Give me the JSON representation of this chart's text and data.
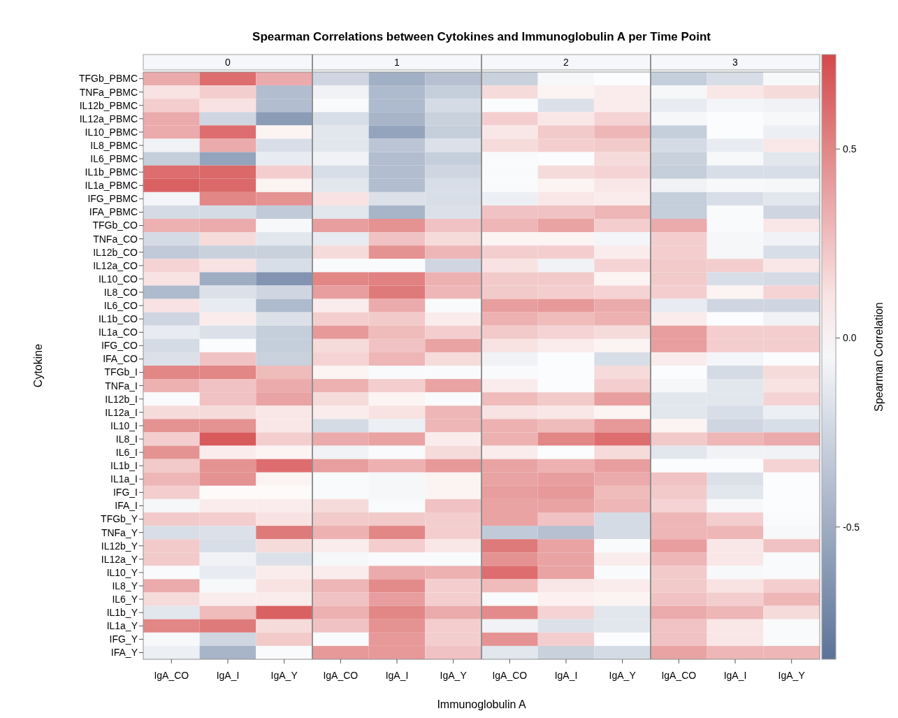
{
  "chart_data": {
    "type": "heatmap",
    "title": "Spearman Correlations between Cytokines and Immunoglobulin A per Time Point",
    "xlabel": "Immunoglobulin A",
    "ylabel": "Cytokine",
    "clabel": "Spearman Correlation",
    "annotations": [
      "0",
      "1",
      "2",
      "3"
    ],
    "categories": [
      "IgA_CO",
      "IgA_I",
      "IgA_Y",
      "IgA_CO",
      "IgA_I",
      "IgA_Y",
      "IgA_CO",
      "IgA_I",
      "IgA_Y",
      "IgA_CO",
      "IgA_I",
      "IgA_Y"
    ],
    "y_categories": [
      "TFGb_PBMC",
      "TNFa_PBMC",
      "IL12b_PBMC",
      "IL12a_PBMC",
      "IL10_PBMC",
      "IL8_PBMC",
      "IL6_PBMC",
      "IL1b_PBMC",
      "IL1a_PBMC",
      "IFG_PBMC",
      "IFA_PBMC",
      "TFGb_CO",
      "TNFa_CO",
      "IL12b_CO",
      "IL12a_CO",
      "IL10_CO",
      "IL8_CO",
      "IL6_CO",
      "IL1b_CO",
      "IL1a_CO",
      "IFG_CO",
      "IFA_CO",
      "TFGb_I",
      "TNFa_I",
      "IL12b_I",
      "IL12a_I",
      "IL10_I",
      "IL8_I",
      "IL6_I",
      "IL1b_I",
      "IL1a_I",
      "IFG_I",
      "IFA_I",
      "TFGb_Y",
      "TNFa_Y",
      "IL12b_Y",
      "IL12a_Y",
      "IL10_Y",
      "IL8_Y",
      "IL6_Y",
      "IL1b_Y",
      "IL1a_Y",
      "IFG_Y",
      "IFA_Y"
    ],
    "cells": [
      [
        0.35,
        0.6,
        0.35,
        -0.25,
        -0.48,
        -0.38,
        -0.28,
        -0.05,
        -0.02,
        -0.3,
        -0.2,
        -0.04
      ],
      [
        0.12,
        0.2,
        -0.4,
        -0.08,
        -0.42,
        -0.3,
        0.15,
        0.05,
        0.08,
        -0.05,
        0.1,
        0.15
      ],
      [
        0.2,
        0.12,
        -0.4,
        -0.03,
        -0.42,
        -0.22,
        -0.02,
        -0.18,
        0.08,
        -0.12,
        -0.06,
        -0.08
      ],
      [
        0.35,
        -0.25,
        -0.6,
        -0.2,
        -0.45,
        -0.28,
        0.2,
        0.1,
        0.18,
        -0.05,
        -0.02,
        -0.04
      ],
      [
        0.35,
        0.6,
        0.05,
        -0.15,
        -0.55,
        -0.3,
        0.1,
        0.22,
        0.3,
        -0.3,
        -0.02,
        -0.1
      ],
      [
        -0.08,
        0.35,
        -0.2,
        -0.15,
        -0.35,
        -0.18,
        0.15,
        0.2,
        0.22,
        -0.22,
        -0.12,
        0.1
      ],
      [
        -0.3,
        -0.55,
        -0.12,
        -0.08,
        -0.4,
        -0.3,
        -0.03,
        -0.02,
        0.15,
        -0.28,
        -0.04,
        -0.15
      ],
      [
        0.6,
        0.62,
        0.2,
        -0.2,
        -0.4,
        -0.25,
        -0.03,
        0.15,
        0.18,
        -0.3,
        -0.2,
        -0.2
      ],
      [
        0.65,
        0.62,
        0.05,
        -0.15,
        -0.4,
        -0.2,
        -0.03,
        0.05,
        0.1,
        -0.08,
        -0.04,
        -0.05
      ],
      [
        -0.06,
        0.5,
        0.45,
        0.12,
        -0.18,
        -0.2,
        -0.1,
        0.1,
        0.08,
        -0.3,
        -0.2,
        -0.15
      ],
      [
        -0.22,
        -0.22,
        -0.32,
        -0.15,
        -0.45,
        -0.18,
        0.25,
        0.25,
        0.3,
        -0.3,
        -0.03,
        -0.25
      ],
      [
        0.32,
        0.35,
        -0.04,
        0.4,
        0.45,
        0.25,
        0.3,
        0.38,
        0.2,
        0.35,
        -0.03,
        0.1
      ],
      [
        -0.22,
        0.15,
        -0.15,
        -0.12,
        0.25,
        0.15,
        0.05,
        0.05,
        -0.06,
        0.2,
        -0.05,
        -0.08
      ],
      [
        -0.32,
        -0.28,
        -0.28,
        0.15,
        0.45,
        0.3,
        0.2,
        0.2,
        0.08,
        0.2,
        -0.05,
        -0.2
      ],
      [
        0.18,
        0.12,
        -0.2,
        -0.03,
        -0.03,
        -0.25,
        0.12,
        -0.08,
        0.18,
        0.22,
        0.2,
        0.1
      ],
      [
        0.12,
        -0.5,
        -0.65,
        0.5,
        0.52,
        0.32,
        0.22,
        0.22,
        0.05,
        0.22,
        -0.2,
        -0.22
      ],
      [
        -0.42,
        -0.18,
        -0.25,
        0.4,
        0.55,
        0.3,
        0.22,
        0.2,
        0.18,
        0.2,
        0.05,
        0.18
      ],
      [
        0.12,
        -0.12,
        -0.42,
        0.08,
        0.35,
        -0.03,
        0.4,
        0.42,
        0.35,
        -0.12,
        -0.25,
        -0.25
      ],
      [
        -0.25,
        0.08,
        -0.18,
        0.2,
        0.22,
        0.08,
        0.32,
        0.28,
        0.32,
        0.08,
        -0.02,
        -0.08
      ],
      [
        -0.12,
        -0.18,
        -0.3,
        0.42,
        0.28,
        0.2,
        0.22,
        0.18,
        0.15,
        0.4,
        0.2,
        0.2
      ],
      [
        -0.22,
        -0.02,
        -0.3,
        0.15,
        0.25,
        0.38,
        0.12,
        0.08,
        0.05,
        0.4,
        0.2,
        0.2
      ],
      [
        -0.18,
        0.25,
        -0.28,
        0.18,
        0.3,
        0.15,
        -0.08,
        -0.02,
        -0.2,
        0.08,
        -0.06,
        -0.02
      ],
      [
        0.5,
        0.5,
        0.28,
        0.05,
        -0.03,
        -0.03,
        -0.03,
        -0.02,
        0.15,
        -0.02,
        -0.22,
        0.15
      ],
      [
        0.32,
        0.25,
        0.35,
        0.32,
        0.2,
        0.38,
        0.08,
        -0.02,
        0.2,
        -0.05,
        -0.15,
        0.12
      ],
      [
        -0.03,
        0.25,
        0.38,
        0.15,
        0.05,
        -0.03,
        0.28,
        0.22,
        0.4,
        -0.15,
        -0.15,
        0.18
      ],
      [
        0.15,
        0.15,
        0.1,
        0.08,
        0.12,
        0.3,
        0.12,
        0.1,
        0.05,
        -0.15,
        -0.2,
        -0.1
      ],
      [
        0.45,
        0.45,
        0.1,
        -0.22,
        -0.1,
        0.3,
        0.32,
        0.28,
        0.42,
        0.05,
        -0.25,
        -0.2
      ],
      [
        0.2,
        0.68,
        0.2,
        0.35,
        0.38,
        0.08,
        0.32,
        0.5,
        0.6,
        0.22,
        0.3,
        0.35
      ],
      [
        0.45,
        0.08,
        0.05,
        -0.08,
        -0.03,
        0.15,
        0.08,
        -0.02,
        0.15,
        -0.15,
        -0.08,
        -0.08
      ],
      [
        0.22,
        0.45,
        0.6,
        0.4,
        0.32,
        0.42,
        0.38,
        0.32,
        0.4,
        -0.02,
        -0.02,
        0.18
      ],
      [
        0.3,
        0.45,
        0.05,
        -0.03,
        -0.05,
        0.05,
        0.38,
        0.4,
        0.35,
        0.25,
        -0.18,
        -0.02
      ],
      [
        0.2,
        0.02,
        0.02,
        -0.03,
        -0.05,
        0.05,
        0.4,
        0.42,
        0.28,
        0.22,
        -0.15,
        -0.02
      ],
      [
        -0.05,
        0.08,
        0.08,
        0.15,
        -0.03,
        0.25,
        0.38,
        0.38,
        0.3,
        0.18,
        -0.04,
        -0.02
      ],
      [
        0.22,
        0.2,
        0.12,
        0.22,
        0.22,
        0.2,
        0.38,
        0.25,
        -0.22,
        0.3,
        0.2,
        -0.03
      ],
      [
        -0.2,
        -0.18,
        0.55,
        0.32,
        0.5,
        0.2,
        -0.32,
        -0.38,
        -0.22,
        0.3,
        0.3,
        -0.04
      ],
      [
        0.22,
        -0.2,
        0.15,
        0.08,
        0.2,
        0.1,
        0.55,
        0.38,
        -0.03,
        0.4,
        0.1,
        0.25
      ],
      [
        0.22,
        -0.08,
        -0.18,
        -0.05,
        -0.03,
        -0.03,
        0.45,
        0.38,
        0.08,
        0.3,
        0.1,
        -0.03
      ],
      [
        -0.03,
        -0.12,
        0.08,
        0.08,
        0.35,
        0.32,
        0.6,
        0.38,
        -0.03,
        0.22,
        -0.04,
        -0.03
      ],
      [
        0.35,
        -0.04,
        0.12,
        0.3,
        0.48,
        0.2,
        0.28,
        0.1,
        0.08,
        0.22,
        0.12,
        0.2
      ],
      [
        0.15,
        0.08,
        0.08,
        0.25,
        0.4,
        0.2,
        -0.03,
        0.06,
        0.05,
        0.25,
        0.2,
        0.3
      ],
      [
        -0.15,
        0.28,
        0.65,
        0.32,
        0.5,
        0.35,
        0.48,
        0.18,
        -0.15,
        0.35,
        0.3,
        0.15
      ],
      [
        0.5,
        0.55,
        0.15,
        0.25,
        0.45,
        0.2,
        -0.08,
        -0.18,
        -0.15,
        0.25,
        0.1,
        -0.03
      ],
      [
        -0.04,
        -0.25,
        0.22,
        -0.03,
        0.42,
        0.2,
        0.45,
        0.2,
        -0.02,
        0.25,
        0.1,
        -0.03
      ],
      [
        -0.1,
        -0.45,
        -0.03,
        0.42,
        0.42,
        0.25,
        -0.15,
        -0.28,
        -0.22,
        0.38,
        0.3,
        0.3
      ]
    ],
    "clim": [
      -0.85,
      0.75
    ],
    "cticks": [
      {
        "value": -0.5,
        "label": "-0.5"
      },
      {
        "value": 0,
        "label": "0.0"
      },
      {
        "value": 0.5,
        "label": "0.5"
      }
    ]
  }
}
